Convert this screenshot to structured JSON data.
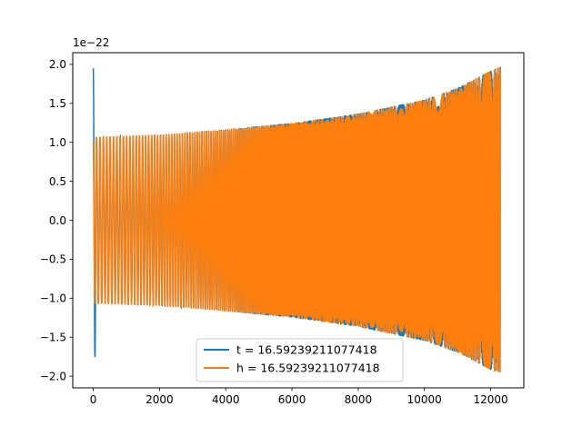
{
  "chart_data": {
    "type": "line",
    "title": "",
    "xlabel": "",
    "ylabel": "",
    "offset_text": "1e−22",
    "xlim": [
      -620,
      13000
    ],
    "ylim": [
      -2.15,
      2.15
    ],
    "x_ticks": [
      0,
      2000,
      4000,
      6000,
      8000,
      10000,
      12000
    ],
    "x_tick_labels": [
      "0",
      "2000",
      "4000",
      "6000",
      "8000",
      "10000",
      "12000"
    ],
    "y_ticks": [
      -2.0,
      -1.5,
      -1.0,
      -0.5,
      0.0,
      0.5,
      1.0,
      1.5,
      2.0
    ],
    "y_tick_labels": [
      "−2.0",
      "−1.5",
      "−1.0",
      "−0.5",
      "0.0",
      "0.5",
      "1.0",
      "1.5",
      "2.0"
    ],
    "grid": false,
    "legend_position": "lower-center",
    "series": [
      {
        "name": "t = 16.59239211077418",
        "color": "#1f77b4",
        "x_range": [
          0,
          12290
        ],
        "envelope": [
          [
            0,
            1.95
          ],
          [
            60,
            1.72
          ],
          [
            100,
            1.07
          ],
          [
            2000,
            1.1
          ],
          [
            4000,
            1.17
          ],
          [
            6000,
            1.25
          ],
          [
            8000,
            1.37
          ],
          [
            10000,
            1.55
          ],
          [
            11000,
            1.7
          ],
          [
            12000,
            1.92
          ],
          [
            12290,
            1.97
          ]
        ]
      },
      {
        "name": "h = 16.59239211077418",
        "color": "#ff7f0e",
        "x_range": [
          0,
          12290
        ],
        "envelope": [
          [
            0,
            1.07
          ],
          [
            2000,
            1.1
          ],
          [
            4000,
            1.17
          ],
          [
            6000,
            1.25
          ],
          [
            8000,
            1.37
          ],
          [
            10000,
            1.55
          ],
          [
            11000,
            1.7
          ],
          [
            12000,
            1.92
          ],
          [
            12290,
            1.97
          ]
        ]
      }
    ]
  }
}
